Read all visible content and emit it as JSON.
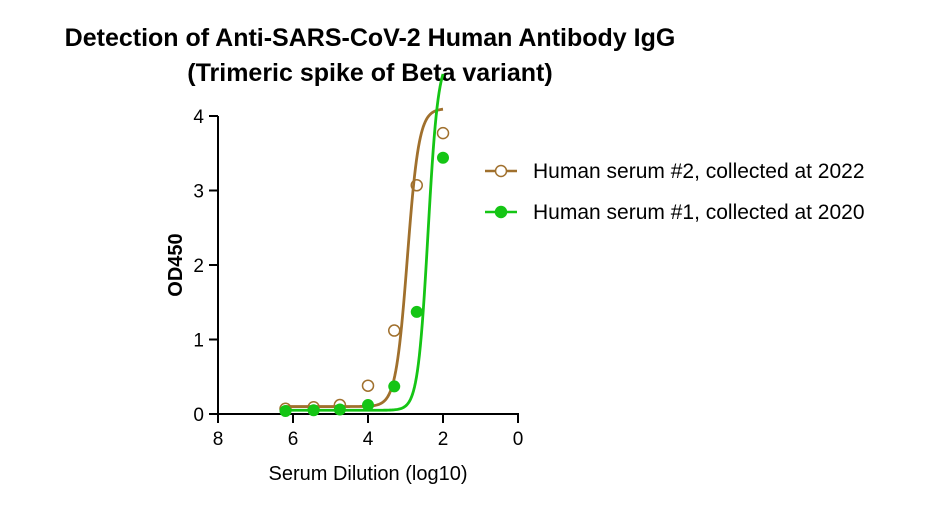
{
  "chart_data": {
    "type": "scatter",
    "title": "Detection of Anti-SARS-CoV-2 Human Antibody IgG",
    "subtitle": "(Trimeric spike of Beta variant)",
    "xlabel": "Serum Dilution (log10)",
    "ylabel": "OD450",
    "xlim": [
      8,
      0
    ],
    "ylim": [
      0,
      4
    ],
    "xticks": [
      "8",
      "6",
      "4",
      "2",
      "0"
    ],
    "yticks": [
      "0",
      "1",
      "2",
      "3",
      "4"
    ],
    "grid": false,
    "legend_position": "right",
    "series": [
      {
        "name": "Human serum #2, collected at 2022",
        "color": "#a0702d",
        "marker": "open-circle",
        "x": [
          6.2,
          5.45,
          4.75,
          4.0,
          3.3,
          2.7,
          2.0
        ],
        "y": [
          0.07,
          0.09,
          0.12,
          0.38,
          1.12,
          3.07,
          3.77
        ],
        "fit": {
          "bottom": 0.1,
          "top": 4.1,
          "logEC50": 2.95,
          "slope": 2.8
        }
      },
      {
        "name": "Human serum #1, collected at 2020",
        "color": "#15c515",
        "marker": "filled-circle",
        "x": [
          6.2,
          5.45,
          4.75,
          4.0,
          3.3,
          2.7,
          2.0
        ],
        "y": [
          0.04,
          0.05,
          0.06,
          0.12,
          0.37,
          1.37,
          3.44
        ],
        "fit": {
          "bottom": 0.05,
          "top": 4.8,
          "logEC50": 2.4,
          "slope": 3.2
        }
      }
    ]
  }
}
